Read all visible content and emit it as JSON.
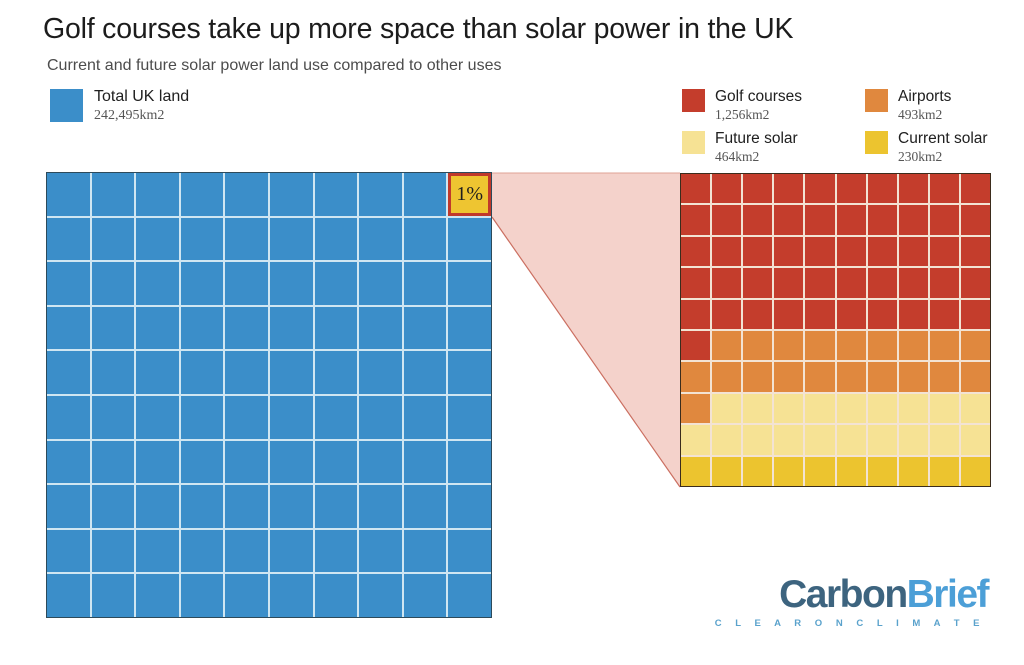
{
  "header": {
    "title": "Golf courses take up more space than solar power in the UK",
    "subtitle": "Current and future solar power land use compared to other uses"
  },
  "legend_total": {
    "label": "Total UK land",
    "value": "242,495km2",
    "color": "#3b8ec9"
  },
  "legend_items": [
    {
      "key": "golf-courses",
      "label": "Golf courses",
      "value": "1,256km2",
      "color": "#c43d2c"
    },
    {
      "key": "airports",
      "label": "Airports",
      "value": "493km2",
      "color": "#e0883e"
    },
    {
      "key": "future-solar",
      "label": "Future solar",
      "value": "464km2",
      "color": "#f6e294"
    },
    {
      "key": "current-solar",
      "label": "Current solar",
      "value": "230km2",
      "color": "#ecc42f"
    }
  ],
  "callout": {
    "label": "1%",
    "fill": "#eec531",
    "border": "#c0392b"
  },
  "chart_data": {
    "type": "waffle",
    "title": "Golf courses take up more space than solar power in the UK",
    "subtitle": "Current and future solar power land use compared to other uses",
    "left_square": {
      "label": "Total UK land",
      "total_km2": 242495,
      "grid": "10x10",
      "cells": 100,
      "cell_value_km2": 2425,
      "color": "#3b8ec9",
      "highlighted_cells": 1,
      "highlight_label": "1%",
      "highlight_position": "top-right"
    },
    "zoom_square": {
      "represents": "1% of total UK land",
      "grid": "10x10",
      "cells": 100,
      "cell_value_km2": 24.25,
      "series": [
        {
          "name": "Golf courses",
          "value_km2": 1256,
          "cells": 51,
          "color": "#c43d2c"
        },
        {
          "name": "Airports",
          "value_km2": 493,
          "cells": 20,
          "color": "#e0883e"
        },
        {
          "name": "Future solar",
          "value_km2": 464,
          "cells": 19,
          "color": "#f6e294"
        },
        {
          "name": "Current solar",
          "value_km2": 230,
          "cells": 10,
          "color": "#ecc42f"
        }
      ],
      "rows": [
        "GGGGGGGGGG",
        "GGGGGGGGGG",
        "GGGGGGGGGG",
        "GGGGGGGGGG",
        "GGGGGGGGGG",
        "GAAAAAAAAA",
        "AAAAAAAAAA",
        "AFFFFFFFFF",
        "FFFFFFFFFF",
        "CCCCCCCCCC"
      ],
      "color_key": {
        "G": "#c43d2c",
        "A": "#e0883e",
        "F": "#f6e294",
        "C": "#ecc42f"
      }
    }
  },
  "logo": {
    "part1": "Carbon",
    "part2": "Brief",
    "tagline": "C L E A R   O N   C L I M A T E"
  }
}
